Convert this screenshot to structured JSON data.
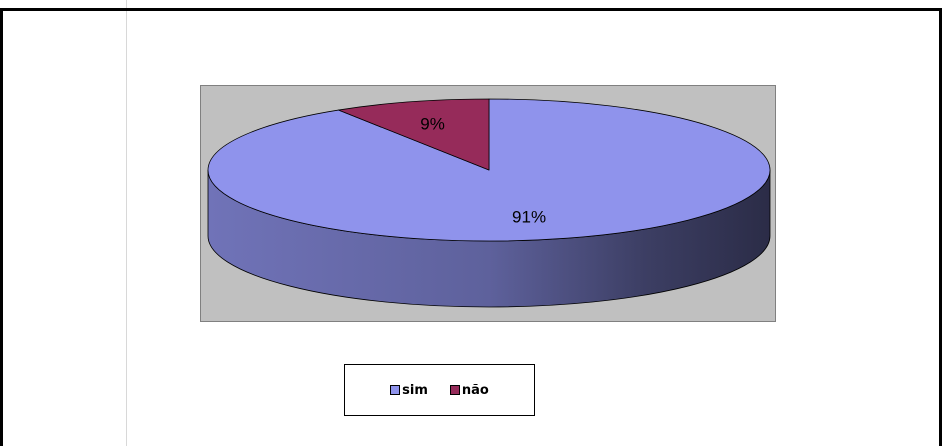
{
  "chart_data": {
    "type": "pie",
    "style": "3d",
    "categories": [
      "sim",
      "não"
    ],
    "values": [
      91,
      9
    ],
    "data_labels": [
      "91%",
      "9%"
    ],
    "colors": [
      "#8f93ec",
      "#962b5a"
    ],
    "plot_background": "#c0c0c0",
    "legend_position": "bottom"
  }
}
